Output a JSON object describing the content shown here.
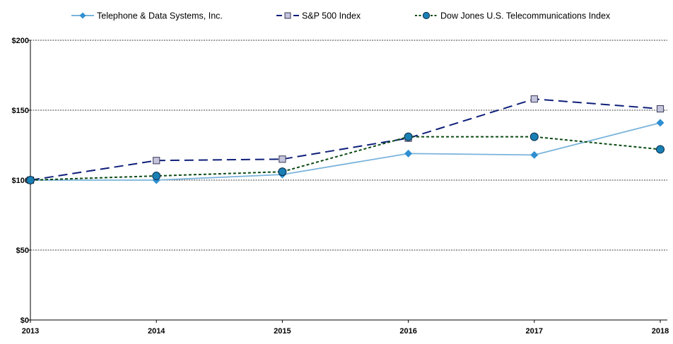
{
  "chart_data": {
    "type": "line",
    "title": "",
    "xlabel": "",
    "ylabel": "",
    "categories": [
      "2013",
      "2014",
      "2015",
      "2016",
      "2017",
      "2018"
    ],
    "ylim": [
      0,
      200
    ],
    "y_ticks": [
      0,
      50,
      100,
      150,
      200
    ],
    "y_tick_labels": [
      "$0",
      "$50",
      "$100",
      "$150",
      "$200"
    ],
    "grid": "horizontal dashed",
    "legend_position": "top",
    "series": [
      {
        "name": "Telephone & Data Systems, Inc.",
        "values": [
          100,
          100,
          104,
          119,
          118,
          141
        ],
        "color": "#7ab4dc",
        "line_style": "solid",
        "marker": "diamond",
        "marker_color": "#2e8fd2"
      },
      {
        "name": "S&P 500 Index",
        "values": [
          100,
          114,
          115,
          130,
          158,
          151
        ],
        "color": "#0f1f7a",
        "line_style": "long-dash",
        "marker": "square",
        "marker_color": "#c4c4dc"
      },
      {
        "name": "Dow Jones U.S. Telecommunications Index",
        "values": [
          100,
          103,
          106,
          131,
          131,
          122
        ],
        "color": "#0a4a12",
        "line_style": "short-dash",
        "marker": "circle",
        "marker_color": "#1a7fb4"
      }
    ]
  }
}
